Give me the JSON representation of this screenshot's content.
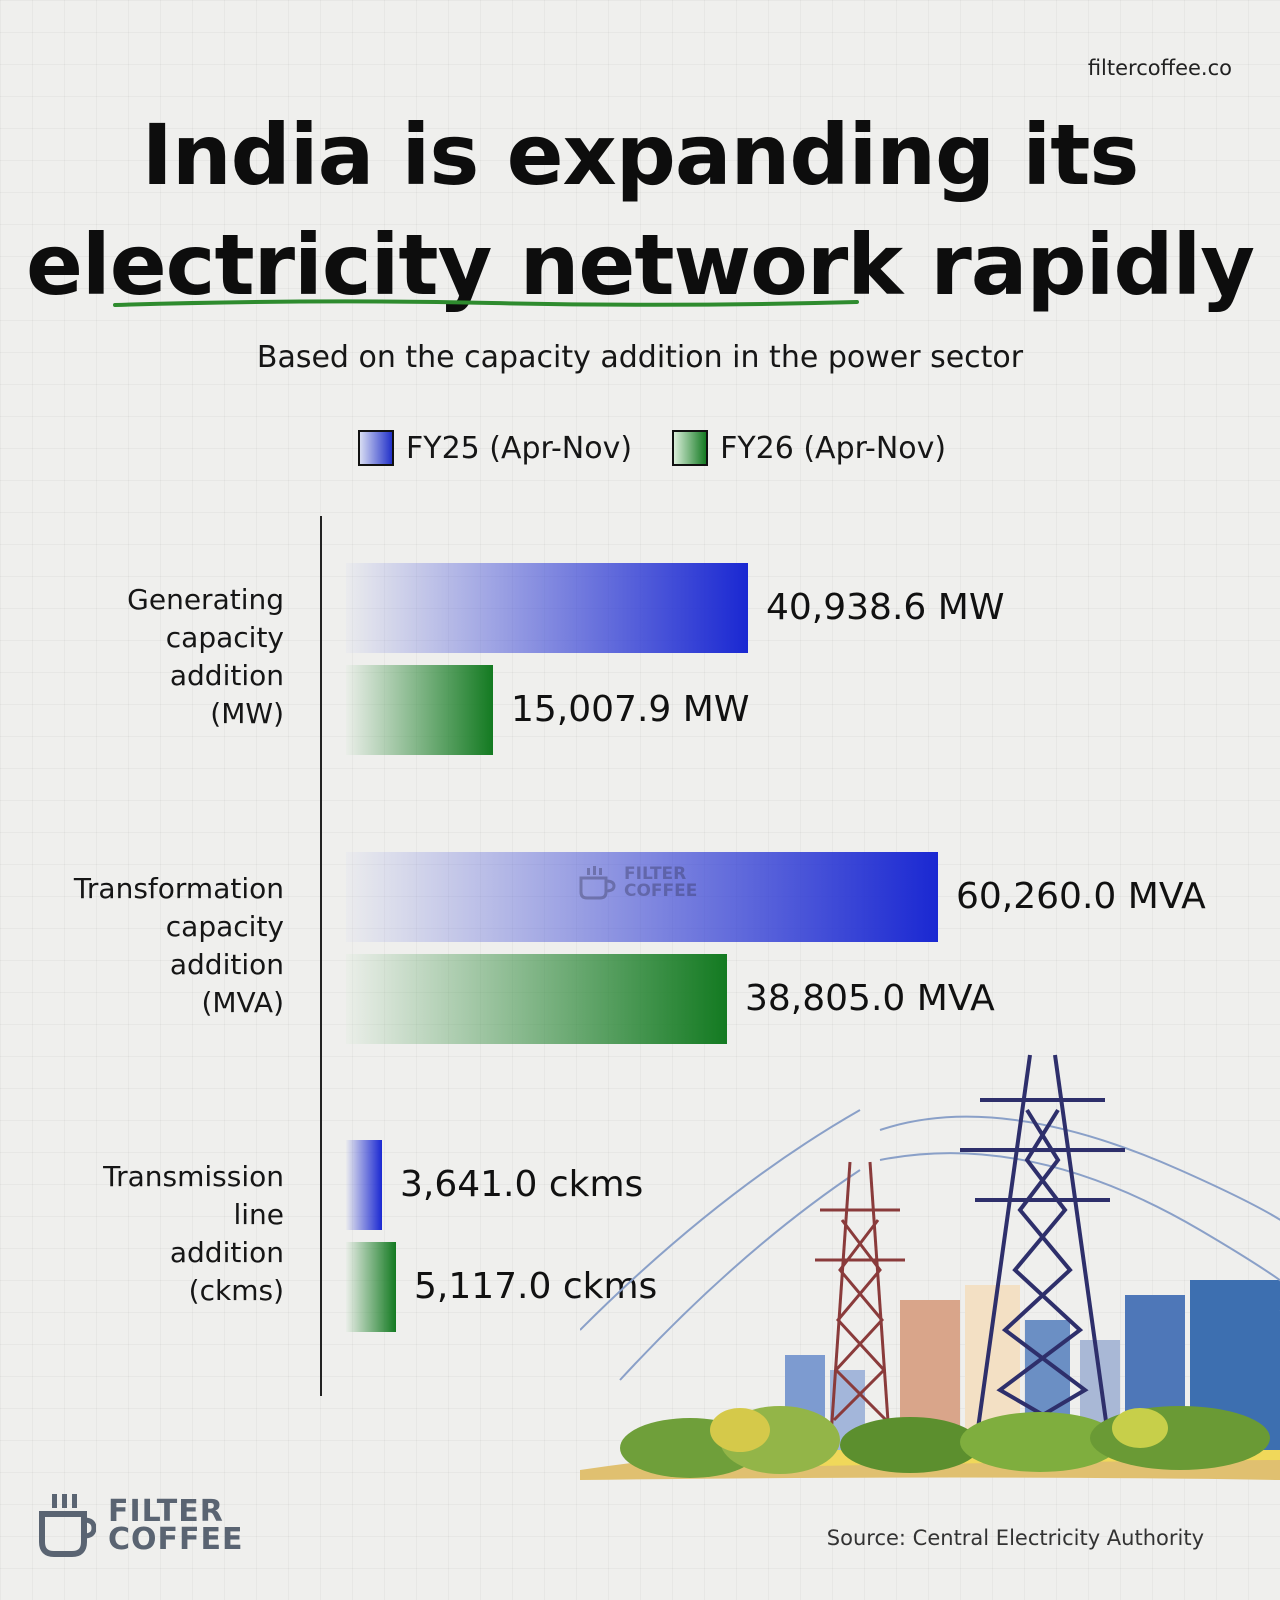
{
  "header": {
    "site": "filtercoffee.co",
    "title_line1": "India is expanding its",
    "title_line2": "electricity network rapidly",
    "subtitle": "Based on the capacity addition in the power sector"
  },
  "colors": {
    "fy25": "#1a28d2",
    "fy26": "#137a21",
    "underline": "#2e8b2e"
  },
  "chart_data": {
    "type": "bar",
    "orientation": "horizontal",
    "legend_position": "top",
    "categories": [
      "Generating capacity addition (MW)",
      "Transformation capacity addition (MVA)",
      "Transmission line addition (ckms)"
    ],
    "category_labels": [
      "Generating\ncapacity\naddition\n(MW)",
      "Transformation\ncapacity\naddition\n(MVA)",
      "Transmission\nline\naddition\n(ckms)"
    ],
    "series": [
      {
        "name": "FY25 (Apr-Nov)",
        "values": [
          40938.6,
          60260.0,
          3641.0
        ],
        "labels": [
          "40,938.6 MW",
          "60,260.0 MVA",
          "3,641.0 ckms"
        ]
      },
      {
        "name": "FY26 (Apr-Nov)",
        "values": [
          15007.9,
          38805.0,
          5117.0
        ],
        "labels": [
          "15,007.9 MW",
          "38,805.0 MVA",
          "5,117.0 ckms"
        ]
      }
    ],
    "grid": false
  },
  "watermark": {
    "line1": "FILTER",
    "line2": "COFFEE",
    "icon": "coffee-cup-icon"
  },
  "footer": {
    "logo_line1": "FILTER",
    "logo_line2": "COFFEE",
    "logo_icon": "coffee-cup-icon",
    "source": "Source: Central Electricity Authority"
  },
  "illustration": {
    "icon": "transmission-towers-illustration"
  }
}
